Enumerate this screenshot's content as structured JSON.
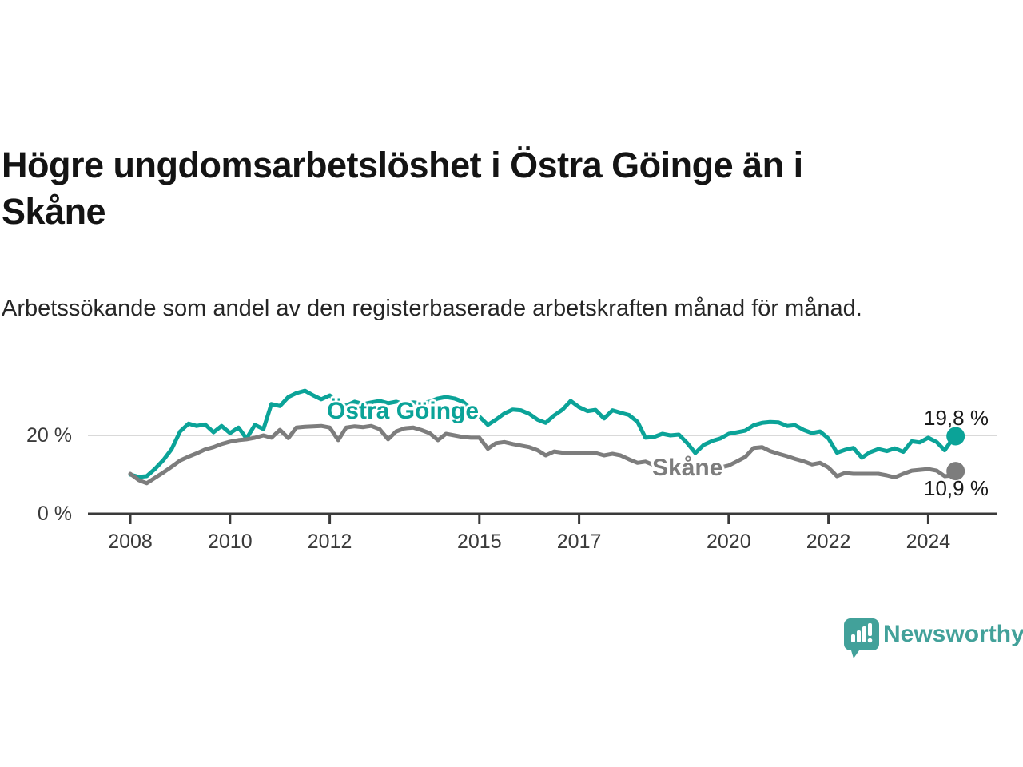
{
  "header": {
    "title": "Högre ungdomsarbetslöshet i Östra Göinge än i Skåne",
    "subtitle": "Arbetssökande som andel av den registerbaserade arbetskraften månad för månad."
  },
  "chart_data": {
    "type": "line",
    "title": "Högre ungdomsarbetslöshet i Östra Göinge än i Skåne",
    "unit": "%",
    "x_unit": "year (monthly data, Jan 2008 – mid 2024)",
    "ylim": [
      0,
      33
    ],
    "grid": "horizontal gridline at 20% only",
    "legend": "inline labels next to lines",
    "x": [
      2008.0,
      2008.17,
      2008.33,
      2008.5,
      2008.67,
      2008.83,
      2009.0,
      2009.17,
      2009.33,
      2009.5,
      2009.67,
      2009.83,
      2010.0,
      2010.17,
      2010.33,
      2010.5,
      2010.67,
      2010.83,
      2011.0,
      2011.17,
      2011.33,
      2011.5,
      2011.67,
      2011.83,
      2012.0,
      2012.17,
      2012.33,
      2012.5,
      2012.67,
      2012.83,
      2013.0,
      2013.17,
      2013.33,
      2013.5,
      2013.67,
      2013.83,
      2014.0,
      2014.17,
      2014.33,
      2014.5,
      2014.67,
      2014.83,
      2015.0,
      2015.17,
      2015.33,
      2015.5,
      2015.67,
      2015.83,
      2016.0,
      2016.17,
      2016.33,
      2016.5,
      2016.67,
      2016.83,
      2017.0,
      2017.17,
      2017.33,
      2017.5,
      2017.67,
      2017.83,
      2018.0,
      2018.17,
      2018.33,
      2018.5,
      2018.67,
      2018.83,
      2019.0,
      2019.17,
      2019.33,
      2019.5,
      2019.67,
      2019.83,
      2020.0,
      2020.17,
      2020.33,
      2020.5,
      2020.67,
      2020.83,
      2021.0,
      2021.17,
      2021.33,
      2021.5,
      2021.67,
      2021.83,
      2022.0,
      2022.17,
      2022.33,
      2022.5,
      2022.67,
      2022.83,
      2023.0,
      2023.17,
      2023.33,
      2023.5,
      2023.67,
      2023.83,
      2024.0,
      2024.17,
      2024.33,
      2024.5,
      2024.55
    ],
    "series": [
      {
        "name": "Östra Göinge",
        "color": "#0ba398",
        "end_label": "19,8 %",
        "end_value": 19.8,
        "values": [
          10.0,
          9.4,
          9.6,
          11.5,
          13.8,
          16.5,
          21.0,
          23.0,
          22.4,
          22.8,
          20.8,
          22.4,
          20.6,
          22.0,
          19.2,
          22.7,
          21.6,
          28.0,
          27.5,
          29.8,
          30.8,
          31.4,
          30.2,
          29.2,
          30.2,
          28.4,
          27.6,
          28.6,
          28.0,
          28.4,
          28.8,
          28.2,
          28.6,
          28.0,
          28.4,
          28.2,
          28.6,
          29.4,
          29.8,
          29.4,
          28.6,
          26.8,
          24.8,
          22.7,
          24.0,
          25.6,
          26.6,
          26.4,
          25.5,
          24.0,
          23.2,
          25.1,
          26.6,
          28.8,
          27.2,
          26.2,
          26.5,
          24.3,
          26.4,
          25.8,
          25.2,
          23.5,
          19.4,
          19.6,
          20.4,
          20.0,
          20.2,
          18.0,
          15.5,
          17.6,
          18.6,
          19.2,
          20.4,
          20.8,
          21.2,
          22.6,
          23.2,
          23.4,
          23.3,
          22.4,
          22.6,
          21.4,
          20.6,
          21.0,
          19.2,
          15.6,
          16.3,
          16.8,
          14.3,
          15.7,
          16.5,
          16.0,
          16.7,
          15.8,
          18.5,
          18.2,
          19.4,
          18.3,
          16.2,
          19.3,
          19.8
        ]
      },
      {
        "name": "Skåne",
        "color": "#7d7d7d",
        "end_label": "10,9 %",
        "end_value": 10.9,
        "values": [
          10.2,
          8.6,
          7.8,
          9.2,
          10.6,
          12.0,
          13.6,
          14.6,
          15.4,
          16.4,
          17.0,
          17.8,
          18.4,
          18.8,
          19.0,
          19.4,
          20.0,
          19.4,
          21.4,
          19.3,
          22.0,
          22.2,
          22.3,
          22.4,
          22.0,
          18.8,
          22.0,
          22.3,
          22.1,
          22.4,
          21.6,
          19.0,
          21.0,
          21.8,
          22.0,
          21.4,
          20.6,
          18.8,
          20.4,
          20.0,
          19.6,
          19.4,
          19.4,
          16.6,
          18.0,
          18.3,
          17.8,
          17.4,
          17.0,
          16.2,
          14.9,
          15.9,
          15.6,
          15.5,
          15.5,
          15.4,
          15.5,
          14.9,
          15.3,
          14.9,
          13.9,
          13.0,
          13.3,
          12.4,
          12.2,
          12.6,
          12.4,
          12.0,
          11.8,
          11.6,
          11.7,
          11.8,
          12.3,
          13.4,
          14.5,
          16.8,
          17.0,
          16.0,
          15.3,
          14.7,
          14.0,
          13.4,
          12.6,
          13.0,
          11.8,
          9.6,
          10.4,
          10.2,
          10.2,
          10.2,
          10.2,
          9.8,
          9.3,
          10.2,
          11.0,
          11.2,
          11.4,
          11.0,
          9.6,
          9.8,
          10.9
        ]
      }
    ],
    "yticks": [
      {
        "value": 20,
        "label": "20 %"
      },
      {
        "value": 0,
        "label": "0 %"
      }
    ],
    "xticks": [
      {
        "value": 2008,
        "label": "2008"
      },
      {
        "value": 2010,
        "label": "2010"
      },
      {
        "value": 2012,
        "label": "2012"
      },
      {
        "value": 2015,
        "label": "2015"
      },
      {
        "value": 2017,
        "label": "2017"
      },
      {
        "value": 2020,
        "label": "2020"
      },
      {
        "value": 2022,
        "label": "2022"
      },
      {
        "value": 2024,
        "label": "2024"
      }
    ]
  },
  "colors": {
    "accent_teal": "#0ba398",
    "line_gray": "#7d7d7d",
    "axis": "#3a3a3a",
    "gridline": "#d9d9d9",
    "brand_teal": "#42a19a"
  },
  "footer": {
    "brand": "Newsworthy",
    "logo_icon": "speech-bubble-bar-chart-icon"
  }
}
